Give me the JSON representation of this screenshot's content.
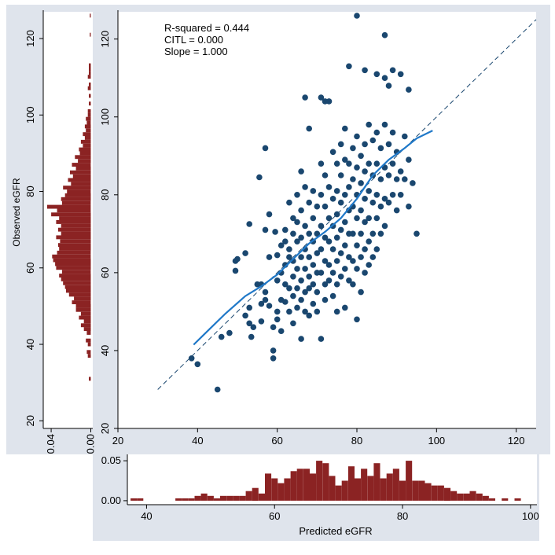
{
  "colors": {
    "panel_bg": "#dfe4ec",
    "plot_bg": "#ffffff",
    "point": "#1a476f",
    "smooth_line": "#1f78c8",
    "reference_line": "#1a476f",
    "histogram_bar": "#8b2323"
  },
  "chart_data": [
    {
      "id": "main",
      "type": "scatter",
      "xlabel": "",
      "ylabel": "",
      "xlim": [
        20,
        125
      ],
      "ylim": [
        20,
        127
      ],
      "xticks": [
        20,
        40,
        60,
        80,
        100,
        120
      ],
      "yticks": [
        20,
        40,
        60,
        80,
        100,
        120
      ],
      "annotations": [
        "R-squared = 0.444",
        "CITL = 0.000",
        "Slope = 1.000"
      ],
      "reference_line": {
        "style": "dashed",
        "from": [
          30,
          30
        ],
        "to": [
          125,
          125
        ]
      },
      "smooth_line": {
        "x": [
          39,
          43,
          47,
          52,
          56,
          60,
          64,
          68,
          72,
          76,
          80,
          84,
          88,
          92,
          95,
          99
        ],
        "y": [
          41.5,
          45.5,
          49.5,
          54,
          56.5,
          59.5,
          63.5,
          67.5,
          70.5,
          74,
          79,
          85,
          89,
          92,
          94.5,
          96.5
        ]
      },
      "points": [
        [
          38.5,
          38
        ],
        [
          40,
          36.5
        ],
        [
          45,
          30
        ],
        [
          46,
          43.5
        ],
        [
          48,
          44.5
        ],
        [
          49.5,
          63
        ],
        [
          50,
          63.5
        ],
        [
          49.5,
          60.5
        ],
        [
          52,
          65
        ],
        [
          53,
          72.5
        ],
        [
          52,
          49
        ],
        [
          53,
          51
        ],
        [
          53,
          47
        ],
        [
          53.5,
          43.5
        ],
        [
          54,
          46
        ],
        [
          55,
          57
        ],
        [
          55.5,
          84.5
        ],
        [
          56,
          47.5
        ],
        [
          56,
          52
        ],
        [
          56,
          57
        ],
        [
          57,
          92
        ],
        [
          57,
          71
        ],
        [
          57,
          55
        ],
        [
          57,
          53
        ],
        [
          58,
          75
        ],
        [
          58,
          64
        ],
        [
          58,
          51.5
        ],
        [
          59,
          38
        ],
        [
          59,
          40
        ],
        [
          59,
          46
        ],
        [
          59.5,
          70.5
        ],
        [
          60,
          64.5
        ],
        [
          60,
          58
        ],
        [
          60,
          50
        ],
        [
          60,
          48
        ],
        [
          61,
          67
        ],
        [
          61,
          60
        ],
        [
          61,
          53
        ],
        [
          61,
          45
        ],
        [
          62,
          71
        ],
        [
          62,
          68
        ],
        [
          62,
          62
        ],
        [
          62,
          57
        ],
        [
          62,
          52.5
        ],
        [
          63,
          78
        ],
        [
          63,
          66
        ],
        [
          63,
          64
        ],
        [
          63,
          56
        ],
        [
          63,
          50
        ],
        [
          64,
          74
        ],
        [
          64,
          70
        ],
        [
          64,
          63
        ],
        [
          64,
          59
        ],
        [
          64,
          54
        ],
        [
          64,
          47
        ],
        [
          65,
          80
        ],
        [
          65,
          73
        ],
        [
          65,
          68
        ],
        [
          65,
          61
        ],
        [
          65,
          56
        ],
        [
          65,
          51
        ],
        [
          66,
          86
        ],
        [
          66,
          76
        ],
        [
          66,
          69
        ],
        [
          66,
          64
        ],
        [
          66,
          58
        ],
        [
          66,
          53
        ],
        [
          66,
          43
        ],
        [
          67,
          105
        ],
        [
          67,
          82
        ],
        [
          67,
          72
        ],
        [
          67,
          66
        ],
        [
          67,
          61
        ],
        [
          67,
          55
        ],
        [
          67,
          50
        ],
        [
          68,
          97
        ],
        [
          68,
          78
        ],
        [
          68,
          70
        ],
        [
          68,
          64
        ],
        [
          68,
          59
        ],
        [
          68,
          56
        ],
        [
          68,
          49
        ],
        [
          69,
          81
        ],
        [
          69,
          74
        ],
        [
          69,
          68
        ],
        [
          69,
          62
        ],
        [
          69,
          57
        ],
        [
          69,
          52
        ],
        [
          70,
          77
        ],
        [
          70,
          70
        ],
        [
          70,
          65
        ],
        [
          70,
          60
        ],
        [
          70,
          55
        ],
        [
          70,
          50
        ],
        [
          71,
          105
        ],
        [
          71,
          88
        ],
        [
          71,
          80
        ],
        [
          71,
          72
        ],
        [
          71,
          66
        ],
        [
          71,
          60
        ],
        [
          71,
          43
        ],
        [
          72,
          104
        ],
        [
          72,
          85
        ],
        [
          72,
          77
        ],
        [
          72,
          69
        ],
        [
          72,
          63
        ],
        [
          72,
          57
        ],
        [
          72,
          53
        ],
        [
          73,
          104
        ],
        [
          73,
          82
        ],
        [
          73,
          74
        ],
        [
          73,
          68
        ],
        [
          73,
          62
        ],
        [
          73,
          58
        ],
        [
          74,
          91
        ],
        [
          74,
          79
        ],
        [
          74,
          72
        ],
        [
          74,
          66
        ],
        [
          74,
          60
        ],
        [
          74,
          54
        ],
        [
          75,
          88
        ],
        [
          75,
          81
        ],
        [
          75,
          75
        ],
        [
          75,
          69
        ],
        [
          75,
          63
        ],
        [
          75,
          57
        ],
        [
          75,
          50
        ],
        [
          76,
          93
        ],
        [
          76,
          85
        ],
        [
          76,
          78
        ],
        [
          76,
          71
        ],
        [
          76,
          65
        ],
        [
          76,
          59
        ],
        [
          77,
          97
        ],
        [
          77,
          89
        ],
        [
          77,
          80
        ],
        [
          77,
          73
        ],
        [
          77,
          67
        ],
        [
          77,
          61
        ],
        [
          77,
          51
        ],
        [
          78,
          113
        ],
        [
          78,
          88
        ],
        [
          78,
          82
        ],
        [
          78,
          76
        ],
        [
          78,
          70
        ],
        [
          78,
          64
        ],
        [
          78,
          58
        ],
        [
          79,
          92
        ],
        [
          79,
          84
        ],
        [
          79,
          77
        ],
        [
          79,
          70
        ],
        [
          79,
          63
        ],
        [
          79,
          57
        ],
        [
          80,
          126
        ],
        [
          80,
          95
        ],
        [
          80,
          87
        ],
        [
          80,
          80
        ],
        [
          80,
          74
        ],
        [
          80,
          67
        ],
        [
          80,
          61
        ],
        [
          80,
          48
        ],
        [
          81,
          90
        ],
        [
          81,
          83
        ],
        [
          81,
          76
        ],
        [
          81,
          70
        ],
        [
          81,
          64
        ],
        [
          81,
          55
        ],
        [
          82,
          112
        ],
        [
          82,
          93
        ],
        [
          82,
          86
        ],
        [
          82,
          79
        ],
        [
          82,
          73
        ],
        [
          82,
          66
        ],
        [
          82,
          60
        ],
        [
          83,
          98
        ],
        [
          83,
          88
        ],
        [
          83,
          81
        ],
        [
          83,
          74
        ],
        [
          83,
          68
        ],
        [
          83,
          62
        ],
        [
          84,
          94
        ],
        [
          84,
          85
        ],
        [
          84,
          78
        ],
        [
          84,
          70
        ],
        [
          84,
          64
        ],
        [
          85,
          111
        ],
        [
          85,
          96
        ],
        [
          85,
          88
        ],
        [
          85,
          80
        ],
        [
          85,
          74
        ],
        [
          85,
          66
        ],
        [
          86,
          92
        ],
        [
          86,
          84
        ],
        [
          86,
          77
        ],
        [
          86,
          70
        ],
        [
          87,
          121
        ],
        [
          87,
          110
        ],
        [
          87,
          98
        ],
        [
          87,
          87
        ],
        [
          87,
          79
        ],
        [
          87,
          72
        ],
        [
          88,
          108
        ],
        [
          88,
          93
        ],
        [
          88,
          85
        ],
        [
          88,
          78
        ],
        [
          89,
          112
        ],
        [
          89,
          96
        ],
        [
          89,
          88
        ],
        [
          89,
          80
        ],
        [
          90,
          91
        ],
        [
          90,
          84
        ],
        [
          90,
          76
        ],
        [
          91,
          111
        ],
        [
          91,
          86
        ],
        [
          91,
          80
        ],
        [
          92,
          95
        ],
        [
          92,
          84
        ],
        [
          93,
          107
        ],
        [
          93,
          89
        ],
        [
          93,
          77
        ],
        [
          94,
          83
        ],
        [
          95,
          70
        ]
      ]
    },
    {
      "id": "bottom_hist",
      "type": "bar",
      "xlabel": "Predicted eGFR",
      "ylabel": "",
      "xlim": [
        37,
        101
      ],
      "ylim": [
        -0.005,
        0.058
      ],
      "xticks": [
        40,
        60,
        80,
        100
      ],
      "yticks": [
        0,
        0.05
      ],
      "ytick_labels": [
        "0.00",
        "0.05"
      ],
      "bin_width": 1,
      "bins": [
        [
          38,
          0.003
        ],
        [
          39,
          0.003
        ],
        [
          45,
          0.003
        ],
        [
          46,
          0.003
        ],
        [
          47,
          0.003
        ],
        [
          48,
          0.006
        ],
        [
          49,
          0.009
        ],
        [
          50,
          0.006
        ],
        [
          51,
          0.003
        ],
        [
          52,
          0.006
        ],
        [
          53,
          0.006
        ],
        [
          54,
          0.006
        ],
        [
          55,
          0.006
        ],
        [
          56,
          0.012
        ],
        [
          57,
          0.016
        ],
        [
          58,
          0.009
        ],
        [
          59,
          0.034
        ],
        [
          60,
          0.028
        ],
        [
          61,
          0.022
        ],
        [
          62,
          0.028
        ],
        [
          63,
          0.037
        ],
        [
          64,
          0.04
        ],
        [
          65,
          0.04
        ],
        [
          66,
          0.034
        ],
        [
          67,
          0.05
        ],
        [
          68,
          0.047
        ],
        [
          69,
          0.031
        ],
        [
          70,
          0.019
        ],
        [
          71,
          0.025
        ],
        [
          72,
          0.043
        ],
        [
          73,
          0.028
        ],
        [
          74,
          0.04
        ],
        [
          75,
          0.031
        ],
        [
          76,
          0.047
        ],
        [
          77,
          0.028
        ],
        [
          78,
          0.034
        ],
        [
          79,
          0.04
        ],
        [
          80,
          0.025
        ],
        [
          81,
          0.05
        ],
        [
          82,
          0.025
        ],
        [
          83,
          0.025
        ],
        [
          84,
          0.022
        ],
        [
          85,
          0.019
        ],
        [
          86,
          0.019
        ],
        [
          87,
          0.016
        ],
        [
          88,
          0.012
        ],
        [
          89,
          0.009
        ],
        [
          90,
          0.009
        ],
        [
          91,
          0.012
        ],
        [
          92,
          0.009
        ],
        [
          93,
          0.006
        ],
        [
          94,
          0.003
        ],
        [
          96,
          0.003
        ],
        [
          98,
          0.003
        ]
      ]
    },
    {
      "id": "left_hist",
      "type": "bar",
      "orientation": "horizontal",
      "xlabel": "",
      "ylabel": "Observed eGFR",
      "xlim": [
        0.048,
        -0.002
      ],
      "ylim": [
        18,
        127
      ],
      "xticks": [
        0.04,
        0
      ],
      "xtick_labels": [
        "0.04",
        "0.00"
      ],
      "yticks": [
        20,
        40,
        60,
        80,
        100,
        120
      ],
      "bin_width": 1,
      "bins": [
        [
          31,
          0.002
        ],
        [
          37,
          0.003
        ],
        [
          38,
          0.004
        ],
        [
          40,
          0.003
        ],
        [
          41,
          0.005
        ],
        [
          43,
          0.004
        ],
        [
          44,
          0.007
        ],
        [
          45,
          0.01
        ],
        [
          46,
          0.007
        ],
        [
          47,
          0.012
        ],
        [
          48,
          0.01
        ],
        [
          49,
          0.015
        ],
        [
          50,
          0.015
        ],
        [
          51,
          0.019
        ],
        [
          52,
          0.017
        ],
        [
          53,
          0.022
        ],
        [
          54,
          0.025
        ],
        [
          55,
          0.026
        ],
        [
          56,
          0.028
        ],
        [
          57,
          0.03
        ],
        [
          58,
          0.032
        ],
        [
          59,
          0.029
        ],
        [
          60,
          0.035
        ],
        [
          61,
          0.036
        ],
        [
          62,
          0.038
        ],
        [
          63,
          0.039
        ],
        [
          64,
          0.034
        ],
        [
          65,
          0.032
        ],
        [
          66,
          0.033
        ],
        [
          67,
          0.031
        ],
        [
          68,
          0.035
        ],
        [
          69,
          0.03
        ],
        [
          70,
          0.033
        ],
        [
          71,
          0.03
        ],
        [
          72,
          0.035
        ],
        [
          73,
          0.032
        ],
        [
          74,
          0.04
        ],
        [
          75,
          0.034
        ],
        [
          76,
          0.044
        ],
        [
          77,
          0.029
        ],
        [
          78,
          0.03
        ],
        [
          79,
          0.026
        ],
        [
          80,
          0.024
        ],
        [
          81,
          0.028
        ],
        [
          82,
          0.02
        ],
        [
          83,
          0.023
        ],
        [
          84,
          0.018
        ],
        [
          85,
          0.021
        ],
        [
          86,
          0.015
        ],
        [
          87,
          0.019
        ],
        [
          88,
          0.013
        ],
        [
          89,
          0.016
        ],
        [
          90,
          0.011
        ],
        [
          91,
          0.012
        ],
        [
          92,
          0.008
        ],
        [
          93,
          0.01
        ],
        [
          94,
          0.006
        ],
        [
          95,
          0.008
        ],
        [
          96,
          0.005
        ],
        [
          97,
          0.006
        ],
        [
          98,
          0.004
        ],
        [
          99,
          0.005
        ],
        [
          100,
          0.003
        ],
        [
          101,
          0.003
        ],
        [
          103,
          0.002
        ],
        [
          105,
          0.002
        ],
        [
          107,
          0.003
        ],
        [
          108,
          0.002
        ],
        [
          110,
          0.003
        ],
        [
          111,
          0.002
        ],
        [
          112,
          0.002
        ],
        [
          113,
          0.002
        ],
        [
          121,
          0.001
        ],
        [
          126,
          0.001
        ]
      ]
    }
  ]
}
